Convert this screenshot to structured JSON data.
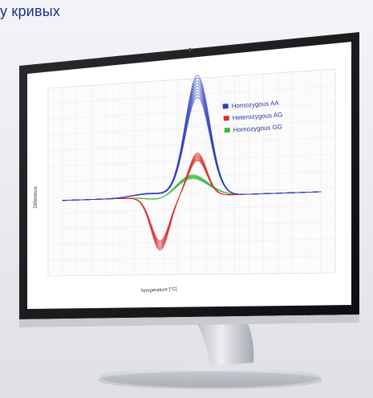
{
  "caption": "у кривых",
  "chart": {
    "ylabel": "Difference",
    "xlabel": "Temperature [°C]",
    "legend": [
      "Homozygous AA",
      "Heterozygous AG",
      "Homozygous GG"
    ],
    "colors": {
      "aa": "#2a3fb8",
      "ag": "#d8322e",
      "gg": "#3fb83f"
    }
  }
}
